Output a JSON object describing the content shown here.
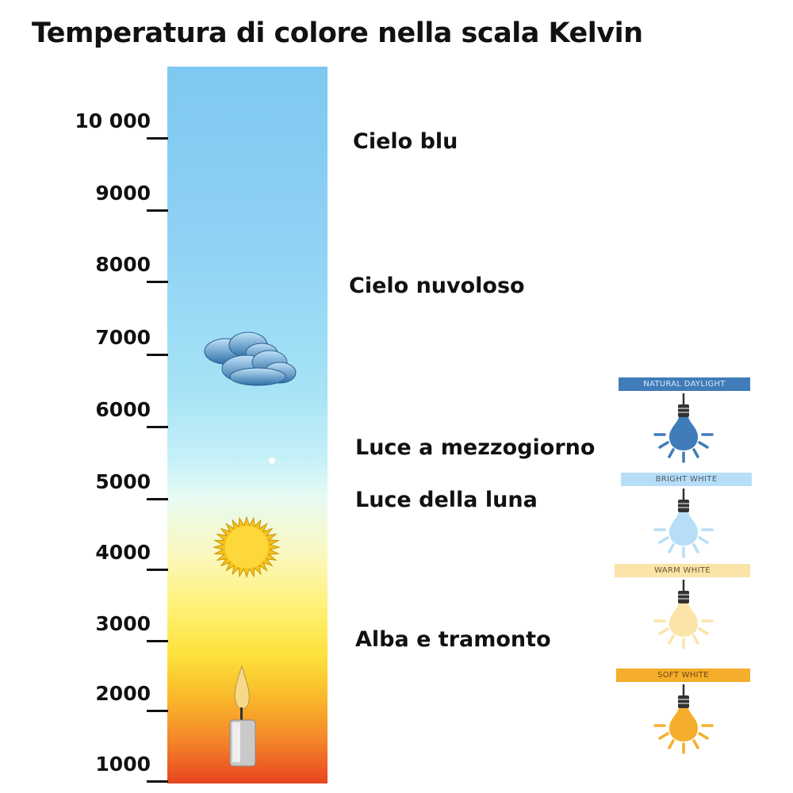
{
  "title": "Temperatura di colore nella scala Kelvin",
  "scale": {
    "ticks": [
      "10 000",
      "9000",
      "8000",
      "7000",
      "6000",
      "5000",
      "4000",
      "3000",
      "2000",
      "1000"
    ]
  },
  "labels": {
    "cielo_blu": "Cielo blu",
    "cielo_nuvoloso": "Cielo nuvoloso",
    "mezzogiorno": "Luce a mezzogiorno",
    "luna": "Luce della luna",
    "alba": "Alba e tramonto"
  },
  "bulbs": [
    {
      "label": "NATURAL DAYLIGHT",
      "color": "#3f7cb9",
      "text_color": "#dbe8f5"
    },
    {
      "label": "BRIGHT WHITE",
      "color": "#b7def6",
      "text_color": "#4a5a6a"
    },
    {
      "label": "WARM WHITE",
      "color": "#fbe4a8",
      "text_color": "#6a5530"
    },
    {
      "label": "SOFT WHITE",
      "color": "#f5ae2b",
      "text_color": "#6a4510"
    }
  ]
}
